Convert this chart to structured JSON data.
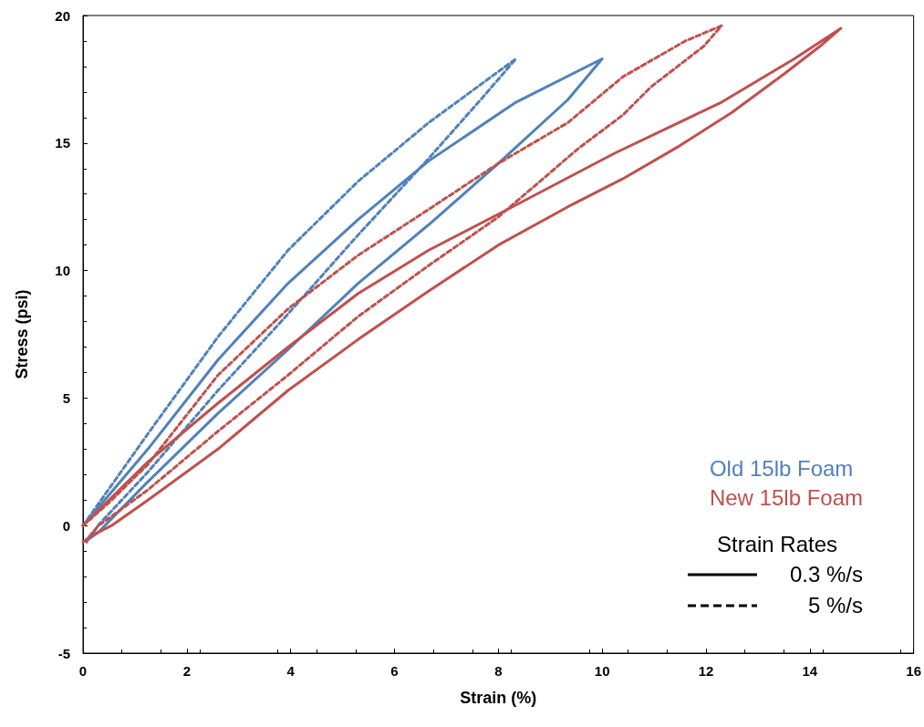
{
  "chart_data": {
    "type": "line",
    "xlabel": "Strain (%)",
    "ylabel": "Stress (psi)",
    "xlim": [
      0,
      16
    ],
    "xticks": [
      0,
      2,
      4,
      6,
      8,
      10,
      12,
      14,
      16
    ],
    "ylim": [
      -5,
      20
    ],
    "yticks": [
      -5,
      0,
      5,
      10,
      15,
      20
    ],
    "grid": false,
    "legend": "bottom right",
    "legend_title": "Strain Rates",
    "marker": "none",
    "annotations": [
      "0.3 %/s",
      "5 %/s"
    ],
    "series": [
      {
        "name": "Old 15lb Foam",
        "color": "#4f81bd",
        "line_style": "solid",
        "x": [
          0,
          1.25,
          2.6,
          3.95,
          5.3,
          6.66,
          8.34,
          10.0,
          9.34,
          8.0,
          6.66,
          5.3,
          3.95,
          2.6,
          1.24,
          0.3,
          0.1
        ],
        "values": [
          0,
          3.0,
          6.5,
          9.5,
          12.0,
          14.3,
          16.6,
          18.3,
          16.7,
          14.2,
          11.8,
          9.5,
          6.9,
          4.4,
          1.7,
          -0.25,
          -0.55
        ]
      },
      {
        "color": "#4f81bd",
        "line_style": "dashed",
        "x": [
          0,
          1.25,
          2.6,
          3.95,
          5.3,
          6.66,
          8.0,
          8.34,
          7.66,
          6.66,
          5.3,
          3.95,
          2.6,
          1.25,
          0.3,
          0.07
        ],
        "values": [
          0,
          3.6,
          7.4,
          10.8,
          13.5,
          15.8,
          17.8,
          18.3,
          16.7,
          14.4,
          11.4,
          8.3,
          5.3,
          2.1,
          0.03,
          -0.65
        ]
      },
      {
        "name": "New 15lb Foam",
        "color": "#c0504d",
        "line_style": "solid",
        "x": [
          0,
          1.25,
          2.6,
          3.95,
          5.3,
          6.66,
          8.18,
          10.24,
          12.3,
          13.7,
          14.6,
          14.2,
          13.5,
          12.5,
          11.5,
          10.4,
          9.34,
          8.0,
          6.66,
          5.3,
          3.95,
          2.6,
          1.25,
          0.55,
          0.16,
          0
        ],
        "values": [
          0,
          2.5,
          4.8,
          7.0,
          9.1,
          10.8,
          12.4,
          14.6,
          16.6,
          18.3,
          19.5,
          18.8,
          17.7,
          16.2,
          14.9,
          13.6,
          12.5,
          11.0,
          9.2,
          7.3,
          5.3,
          3.0,
          1.0,
          0,
          -0.4,
          -0.65
        ]
      },
      {
        "color": "#c0504d",
        "line_style": "dashed",
        "x": [
          0,
          0.5,
          1.25,
          2.6,
          3.95,
          5.3,
          6.66,
          8.0,
          9.34,
          10.4,
          11.6,
          12.3,
          11.96,
          10.94,
          10.4,
          9.55,
          8.0,
          6.66,
          5.3,
          3.95,
          2.6,
          1.25,
          0.3,
          0.05
        ],
        "values": [
          0,
          0.9,
          2.4,
          5.9,
          8.5,
          10.6,
          12.4,
          14.2,
          15.8,
          17.6,
          19.0,
          19.6,
          18.8,
          17.2,
          16.1,
          14.8,
          12.1,
          10.2,
          8.2,
          5.9,
          3.7,
          1.4,
          0,
          -0.6
        ]
      }
    ]
  }
}
